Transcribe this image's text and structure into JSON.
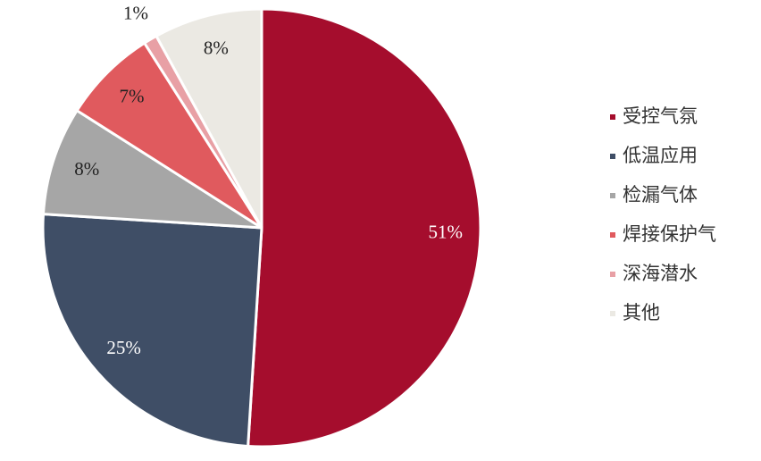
{
  "chart_data": {
    "type": "pie",
    "categories": [
      "受控气氛",
      "低温应用",
      "检漏气体",
      "焊接保护气",
      "深海潜水",
      "其他"
    ],
    "values": [
      51,
      25,
      8,
      7,
      1,
      8
    ],
    "value_labels": [
      "51%",
      "25%",
      "8%",
      "7%",
      "1%",
      "8%"
    ],
    "colors": [
      "#a50d2d",
      "#3f4e66",
      "#a6a6a6",
      "#e05a5e",
      "#e8a0a5",
      "#ebe9e3"
    ],
    "legend": "right"
  }
}
